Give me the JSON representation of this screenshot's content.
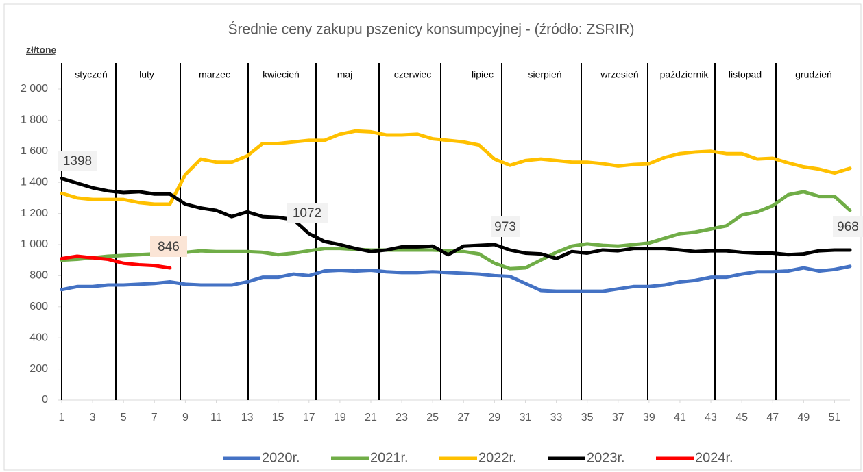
{
  "chart_data": {
    "type": "line",
    "title": "Średnie ceny zakupu pszenicy konsumpcyjnej - (źródło: ZSRIR)",
    "y_label": "zł/tonę",
    "months": [
      "styczeń",
      "luty",
      "marzec",
      "kwiecień",
      "maj",
      "czerwiec",
      "lipiec",
      "sierpień",
      "wrzesień",
      "październik",
      "listopad",
      "grudzień"
    ],
    "annotations": [
      "1398",
      "846",
      "1072",
      "973",
      "968"
    ],
    "x": [
      1,
      2,
      3,
      4,
      5,
      6,
      7,
      8,
      9,
      10,
      11,
      12,
      13,
      14,
      15,
      16,
      17,
      18,
      19,
      20,
      21,
      22,
      23,
      24,
      25,
      26,
      27,
      28,
      29,
      30,
      31,
      32,
      33,
      34,
      35,
      36,
      37,
      38,
      39,
      40,
      41,
      42,
      43,
      44,
      45,
      46,
      47,
      48,
      49,
      50,
      51,
      52
    ],
    "xlim": [
      1,
      52
    ],
    "xticks": [
      1,
      3,
      5,
      7,
      9,
      11,
      13,
      15,
      17,
      19,
      21,
      23,
      25,
      27,
      29,
      31,
      33,
      35,
      37,
      39,
      41,
      43,
      45,
      47,
      49,
      51
    ],
    "ylim": [
      0,
      2000
    ],
    "yticks": [
      0,
      200,
      400,
      600,
      800,
      {
        "value": 1000,
        "label": "1 000"
      },
      {
        "value": 1200,
        "label": "1 200"
      },
      {
        "value": 1400,
        "label": "1 400"
      },
      {
        "value": 1600,
        "label": "1 600"
      },
      {
        "value": 1800,
        "label": "1 800"
      },
      {
        "value": 2000,
        "label": "2 000"
      }
    ],
    "series": [
      {
        "name": "2020r.",
        "color": "#4472c4",
        "values": [
          710,
          730,
          730,
          740,
          740,
          745,
          750,
          760,
          745,
          740,
          740,
          740,
          760,
          790,
          790,
          810,
          800,
          830,
          835,
          830,
          835,
          825,
          820,
          820,
          825,
          820,
          815,
          810,
          800,
          795,
          750,
          705,
          700,
          700,
          700,
          700,
          715,
          730,
          730,
          740,
          760,
          770,
          790,
          790,
          810,
          825,
          825,
          830,
          850,
          830,
          840,
          860
        ]
      },
      {
        "name": "2021r.",
        "color": "#70ad47",
        "values": [
          900,
          905,
          915,
          925,
          930,
          935,
          940,
          940,
          950,
          960,
          955,
          955,
          955,
          950,
          935,
          945,
          960,
          975,
          975,
          970,
          965,
          965,
          965,
          965,
          965,
          960,
          955,
          940,
          880,
          845,
          850,
          900,
          950,
          990,
          1005,
          995,
          990,
          1000,
          1010,
          1040,
          1070,
          1080,
          1100,
          1120,
          1190,
          1210,
          1250,
          1320,
          1340,
          1310,
          1310,
          1220
        ]
      },
      {
        "name": "2022r.",
        "color": "#ffc000",
        "values": [
          1330,
          1300,
          1290,
          1290,
          1290,
          1270,
          1260,
          1260,
          1450,
          1550,
          1530,
          1530,
          1570,
          1650,
          1650,
          1660,
          1670,
          1670,
          1710,
          1730,
          1725,
          1705,
          1705,
          1710,
          1680,
          1670,
          1660,
          1640,
          1550,
          1510,
          1540,
          1550,
          1540,
          1530,
          1530,
          1520,
          1505,
          1515,
          1520,
          1560,
          1585,
          1595,
          1600,
          1585,
          1585,
          1550,
          1555,
          1525,
          1500,
          1485,
          1460,
          1490
        ]
      },
      {
        "name": "2023r.",
        "color": "#000000",
        "values": [
          1425,
          1395,
          1365,
          1345,
          1335,
          1340,
          1325,
          1325,
          1260,
          1235,
          1220,
          1180,
          1210,
          1180,
          1175,
          1160,
          1070,
          1020,
          1000,
          975,
          955,
          965,
          985,
          985,
          990,
          935,
          990,
          995,
          1000,
          965,
          945,
          940,
          910,
          955,
          945,
          965,
          960,
          975,
          975,
          975,
          965,
          955,
          960,
          960,
          950,
          945,
          945,
          935,
          940,
          960,
          965,
          965
        ]
      },
      {
        "name": "2024r.",
        "color": "#ff0000",
        "values": [
          910,
          925,
          915,
          905,
          880,
          870,
          865,
          850,
          null,
          null,
          null,
          null,
          null,
          null,
          null,
          null,
          null,
          null,
          null,
          null,
          null,
          null,
          null,
          null,
          null,
          null,
          null,
          null,
          null,
          null,
          null,
          null,
          null,
          null,
          null,
          null,
          null,
          null,
          null,
          null,
          null,
          null,
          null,
          null,
          null,
          null,
          null,
          null,
          null,
          null,
          null,
          null
        ]
      }
    ]
  }
}
